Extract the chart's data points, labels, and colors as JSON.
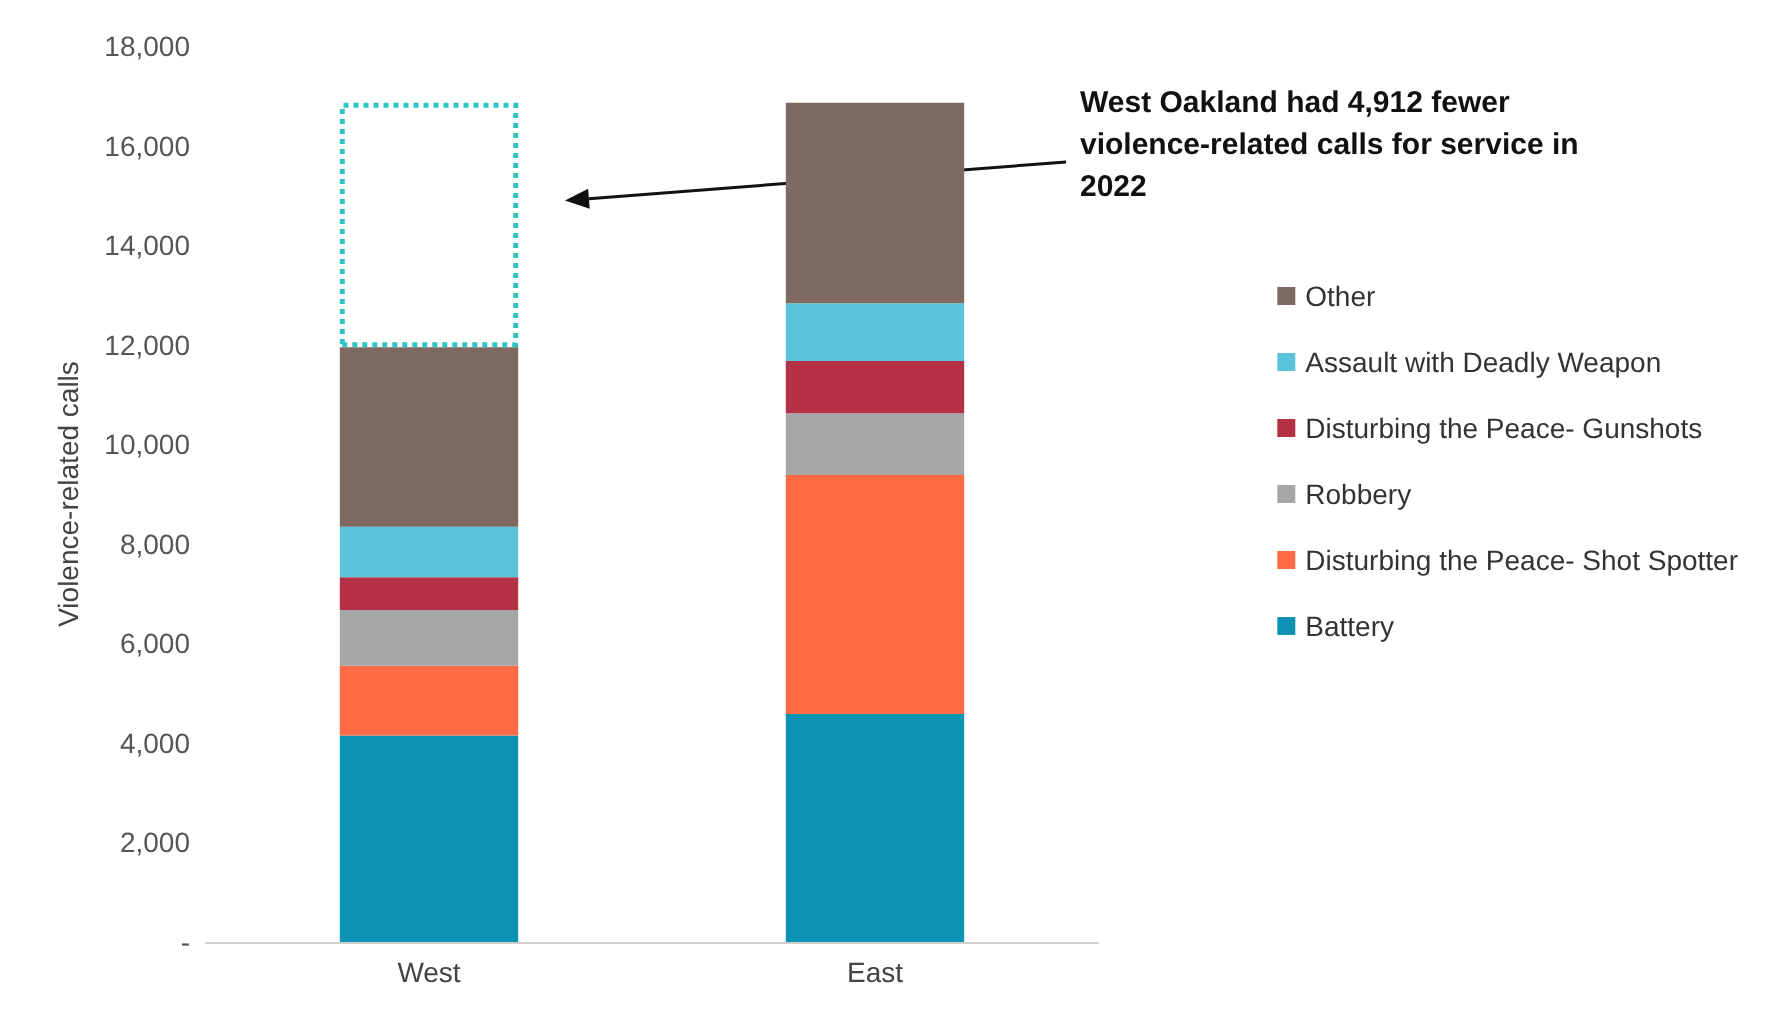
{
  "chart_data": {
    "type": "bar",
    "stacked": true,
    "ylabel": "Violence-related calls",
    "categories": [
      "West",
      "East"
    ],
    "series": [
      {
        "name": "Battery",
        "color": "#0e93b5",
        "values": [
          4150,
          4580
        ]
      },
      {
        "name": "Disturbing the Peace- Shot Spotter",
        "color": "#ff6b45",
        "values": [
          1400,
          4800
        ]
      },
      {
        "name": "Robbery",
        "color": "#a6a6a6",
        "values": [
          1120,
          1240
        ]
      },
      {
        "name": "Disturbing the Peace- Gunshots",
        "color": "#b33045",
        "values": [
          660,
          1050
        ]
      },
      {
        "name": "Assault with Deadly Weapon",
        "color": "#5bc3d9",
        "values": [
          1010,
          1160
        ]
      },
      {
        "name": "Other",
        "color": "#7f6a62",
        "values": [
          3610,
          4030
        ]
      },
      {
        "color": "#2ec4c4",
        "line_style": "dotted",
        "values": [
          4910,
          null
        ]
      }
    ],
    "ylim": [
      0,
      18000
    ],
    "yticks": [
      {
        "value": 0,
        "label": "-"
      },
      {
        "value": 2000,
        "label": "2,000"
      },
      {
        "value": 4000,
        "label": "4,000"
      },
      {
        "value": 6000,
        "label": "6,000"
      },
      {
        "value": 8000,
        "label": "8,000"
      },
      {
        "value": 10000,
        "label": "10,000"
      },
      {
        "value": 12000,
        "label": "12,000"
      },
      {
        "value": 14000,
        "label": "14,000"
      },
      {
        "value": 16000,
        "label": "16,000"
      },
      {
        "value": 18000,
        "label": "18,000"
      }
    ],
    "grid": false,
    "legend": "right",
    "annotations": [
      "West Oakland had 4,912 fewer violence-related calls for service in 2022"
    ]
  }
}
